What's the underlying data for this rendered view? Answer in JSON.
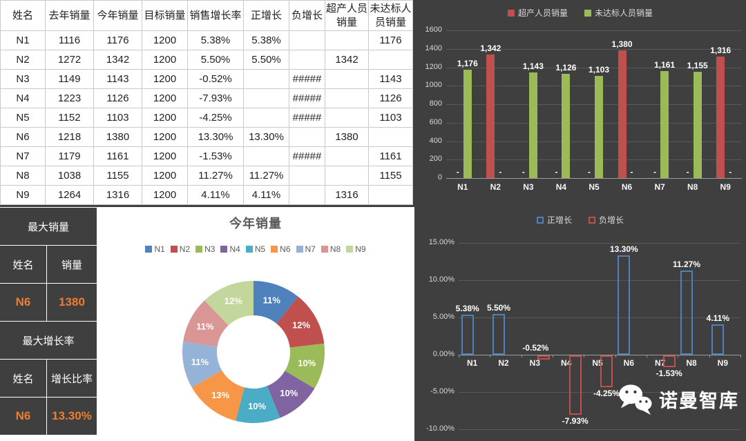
{
  "colors": {
    "background": "#3f3f3f",
    "accent_orange": "#ED7D31",
    "over_series_red": "#C0504D",
    "under_series_green": "#9BBB59",
    "positive_series_blue": "#4F81BD",
    "negative_series_red": "#C0504D"
  },
  "table": {
    "headers": [
      "姓名",
      "去年销量",
      "今年销量",
      "目标销量",
      "销售增长率",
      "正增长",
      "负增长",
      "超产人员销量",
      "未达标人员销量"
    ],
    "rows": [
      [
        "N1",
        "1116",
        "1176",
        "1200",
        "5.38%",
        "5.38%",
        "",
        "",
        "1176"
      ],
      [
        "N2",
        "1272",
        "1342",
        "1200",
        "5.50%",
        "5.50%",
        "",
        "1342",
        ""
      ],
      [
        "N3",
        "1149",
        "1143",
        "1200",
        "-0.52%",
        "",
        "#####",
        "",
        "1143"
      ],
      [
        "N4",
        "1223",
        "1126",
        "1200",
        "-7.93%",
        "",
        "#####",
        "",
        "1126"
      ],
      [
        "N5",
        "1152",
        "1103",
        "1200",
        "-4.25%",
        "",
        "#####",
        "",
        "1103"
      ],
      [
        "N6",
        "1218",
        "1380",
        "1200",
        "13.30%",
        "13.30%",
        "",
        "1380",
        ""
      ],
      [
        "N7",
        "1179",
        "1161",
        "1200",
        "-1.53%",
        "",
        "#####",
        "",
        "1161"
      ],
      [
        "N8",
        "1038",
        "1155",
        "1200",
        "11.27%",
        "11.27%",
        "",
        "",
        "1155"
      ],
      [
        "N9",
        "1264",
        "1316",
        "1200",
        "4.11%",
        "4.11%",
        "",
        "1316",
        ""
      ]
    ]
  },
  "summary": {
    "max_sales_title": "最大销量",
    "max_sales": {
      "name_header": "姓名",
      "value_header": "销量",
      "name": "N6",
      "value": "1380"
    },
    "max_growth_title": "最大增长率",
    "max_growth": {
      "name_header": "姓名",
      "value_header": "增长比率",
      "name": "N6",
      "value": "13.30%"
    }
  },
  "chart_data": [
    {
      "type": "bar",
      "title": "",
      "categories": [
        "N1",
        "N2",
        "N3",
        "N4",
        "N5",
        "N6",
        "N7",
        "N8",
        "N9"
      ],
      "series": [
        {
          "name": "超产人员销量",
          "color": "#C0504D",
          "values": [
            0,
            1342,
            0,
            0,
            0,
            1380,
            0,
            0,
            1316
          ],
          "labels": [
            "-",
            "1,342",
            "-",
            "-",
            "-",
            "1,380",
            "-",
            "-",
            "1,316"
          ]
        },
        {
          "name": "未达标人员销量",
          "color": "#9BBB59",
          "values": [
            1176,
            0,
            1143,
            1126,
            1103,
            0,
            1161,
            1155,
            0
          ],
          "labels": [
            "1,176",
            "-",
            "1,143",
            "1,126",
            "1,103",
            "-",
            "1,161",
            "1,155",
            "-"
          ]
        }
      ],
      "ylim": [
        0,
        1600
      ],
      "yticks": [
        0,
        200,
        400,
        600,
        800,
        1000,
        1200,
        1400,
        1600
      ],
      "legend_position": "top",
      "grid": true
    },
    {
      "type": "pie",
      "donut": true,
      "title": "今年销量",
      "categories": [
        "N1",
        "N2",
        "N3",
        "N4",
        "N5",
        "N6",
        "N7",
        "N8",
        "N9"
      ],
      "values": [
        1176,
        1342,
        1143,
        1126,
        1103,
        1380,
        1161,
        1155,
        1316
      ],
      "labels": [
        "11%",
        "12%",
        "10%",
        "10%",
        "10%",
        "13%",
        "11%",
        "11%",
        "12%"
      ],
      "colors": [
        "#4F81BD",
        "#C0504D",
        "#9BBB59",
        "#8064A2",
        "#4BACC6",
        "#F79646",
        "#95B3D7",
        "#D99694",
        "#C3D69B"
      ],
      "legend_position": "top"
    },
    {
      "type": "bar",
      "title": "",
      "categories": [
        "N1",
        "N2",
        "N3",
        "N4",
        "N5",
        "N6",
        "N7",
        "N8",
        "N9"
      ],
      "series": [
        {
          "name": "正增长",
          "color": "#4F81BD",
          "values": [
            5.38,
            5.5,
            null,
            null,
            null,
            13.3,
            null,
            11.27,
            4.11
          ],
          "labels": [
            "5.38%",
            "5.50%",
            "",
            "",
            "",
            "13.30%",
            "",
            "11.27%",
            "4.11%"
          ]
        },
        {
          "name": "负增长",
          "color": "#C0504D",
          "values": [
            null,
            null,
            -0.52,
            -7.93,
            -4.25,
            null,
            -1.53,
            null,
            null
          ],
          "labels": [
            "",
            "",
            "-0.52%",
            "-7.93%",
            "-4.25%",
            "",
            "-1.53%",
            "",
            ""
          ]
        }
      ],
      "ylim": [
        -10,
        15
      ],
      "yticks": [
        15,
        10,
        5,
        0,
        -5,
        -10
      ],
      "ytick_labels": [
        "15.00%",
        "10.00%",
        "5.00%",
        "0.00%",
        "-5.00%",
        "-10.00%"
      ],
      "legend_position": "top",
      "grid": true,
      "bar_style": "hollow"
    }
  ],
  "watermark": {
    "text": "诺曼智库"
  }
}
